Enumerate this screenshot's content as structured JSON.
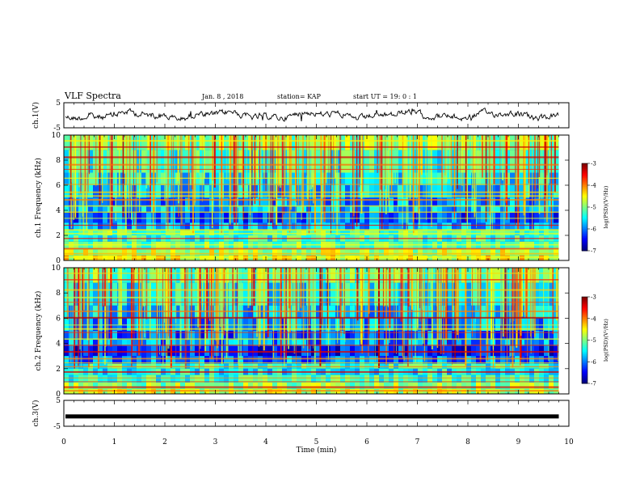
{
  "header": {
    "title": "VLF Spectra",
    "date": "Jan. 8 , 2018",
    "station": "station= KAP",
    "start": "start UT = 19: 0 : 1"
  },
  "chart_data": [
    {
      "id": "ch1-waveform",
      "type": "line",
      "ylabel": "ch.1(V)",
      "ylim": [
        -5,
        5
      ],
      "yticks": [
        "5",
        "-5"
      ],
      "xlim": [
        0,
        10
      ],
      "series": [
        {
          "values_description_free": true,
          "x_end": 9.8,
          "baseline": 0,
          "amplitude": 1.6
        }
      ]
    },
    {
      "id": "ch1-spectrogram",
      "type": "heatmap",
      "ylabel": "ch.1 Frequency (kHz)",
      "ylim": [
        0,
        10
      ],
      "yticks": [
        "0",
        "2",
        "4",
        "6",
        "8",
        "10"
      ],
      "xlim": [
        0,
        10
      ],
      "x_end": 9.8,
      "colorbar": {
        "label": "log(PSD)(V²/Hz)",
        "range": [
          -7,
          -3
        ],
        "ticks": [
          "-3",
          "-4",
          "-5",
          "-6",
          "-7"
        ]
      }
    },
    {
      "id": "ch2-spectrogram",
      "type": "heatmap",
      "ylabel": "ch.2 Frequency (kHz)",
      "ylim": [
        0,
        10
      ],
      "yticks": [
        "0",
        "2",
        "4",
        "6",
        "8",
        "10"
      ],
      "xlim": [
        0,
        10
      ],
      "x_end": 9.8,
      "colorbar": {
        "label": "log(PSD)(V²/Hz)",
        "range": [
          -7,
          -3
        ],
        "ticks": [
          "-3",
          "-4",
          "-5",
          "-6",
          "-7"
        ]
      }
    },
    {
      "id": "ch3-waveform",
      "type": "line",
      "ylabel": "ch.3(V)",
      "ylim": [
        -5,
        5
      ],
      "yticks": [
        "5",
        "-5"
      ],
      "xlim": [
        0,
        10
      ],
      "series": [
        {
          "x_end": 9.8,
          "value": -1.2
        }
      ]
    }
  ],
  "xaxis": {
    "label": "Time (min)",
    "ticks": [
      "0",
      "1",
      "2",
      "3",
      "4",
      "5",
      "6",
      "7",
      "8",
      "9",
      "10"
    ]
  }
}
